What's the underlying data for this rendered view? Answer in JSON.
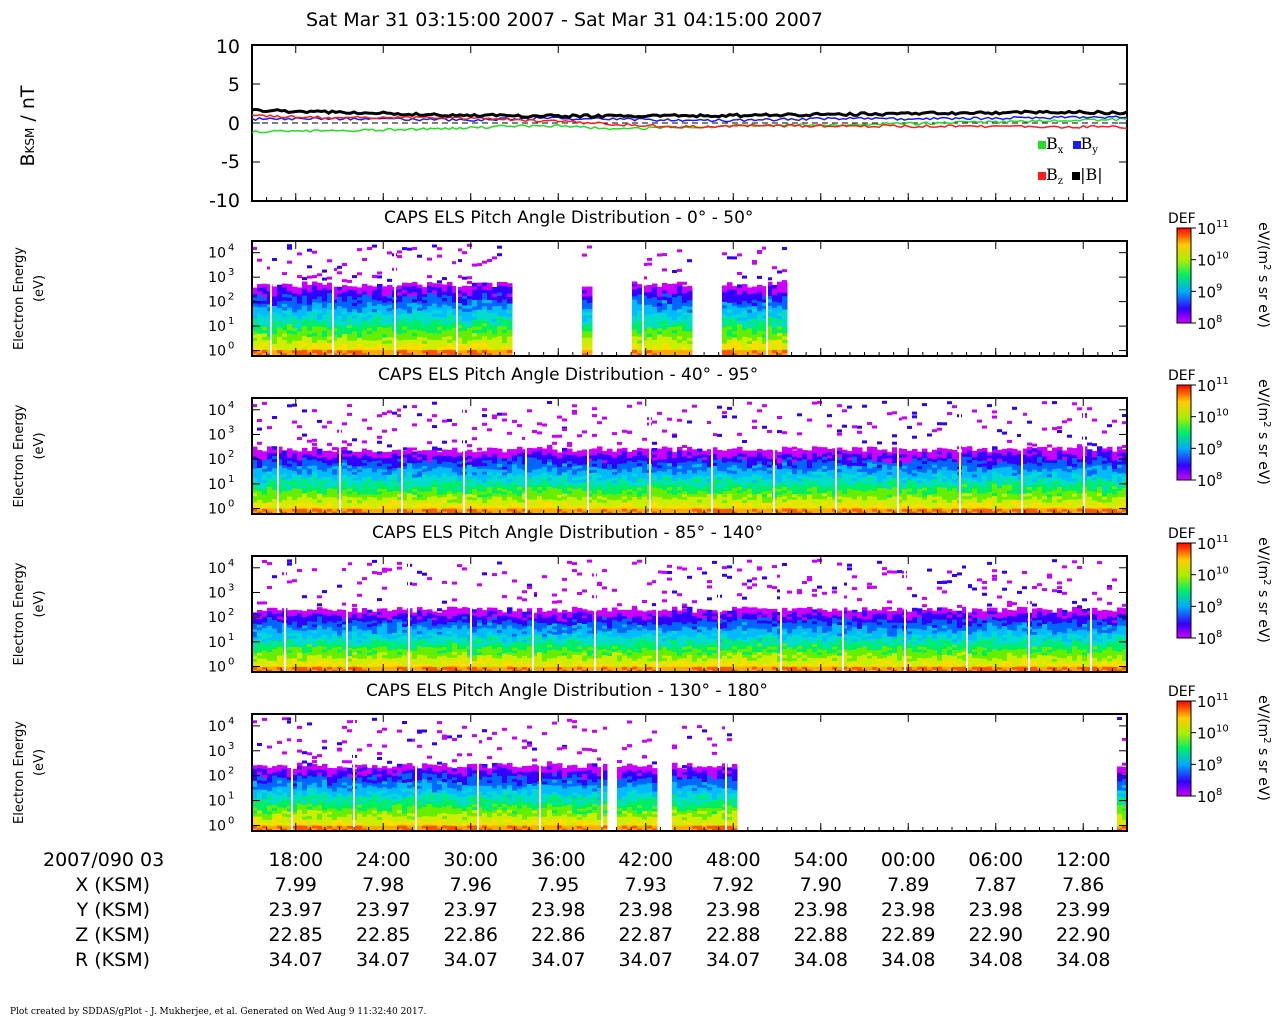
{
  "title": "Sat Mar 31 03:15:00 2007 - Sat Mar 31 04:15:00 2007",
  "mag_panel": {
    "ylabel_main": "B",
    "ylabel_sub": "KSM",
    "ylabel_unit": " / nT",
    "yticks": [
      "10",
      "5",
      "0",
      "-5",
      "-10"
    ],
    "legend": [
      {
        "label": "B",
        "sub": "x",
        "color": "#22dd22"
      },
      {
        "label": "B",
        "sub": "y",
        "color": "#1a1aff"
      },
      {
        "label": "B",
        "sub": "z",
        "color": "#ff1a1a"
      },
      {
        "label": "|B|",
        "sub": "",
        "color": "#000000"
      }
    ]
  },
  "spectro_panels": [
    {
      "title": "CAPS ELS Pitch Angle Distribution - 0° - 50°"
    },
    {
      "title": "CAPS ELS Pitch Angle Distribution - 40° - 95°"
    },
    {
      "title": "CAPS ELS Pitch Angle Distribution - 85° - 140°"
    },
    {
      "title": "CAPS ELS Pitch Angle Distribution - 130° - 180°"
    }
  ],
  "spectro_ylabel_line1": "Electron Energy",
  "spectro_ylabel_line2": "(eV)",
  "spectro_yticks": [
    "10",
    "10",
    "10",
    "10",
    "10"
  ],
  "spectro_ytick_exp": [
    "4",
    "3",
    "2",
    "1",
    "0"
  ],
  "colorbar": {
    "label": "DEF",
    "unit_line1": "eV/(m",
    "unit_sup": "2",
    "unit_line2": " s sr eV)",
    "ticks_base": [
      "10",
      "10",
      "10",
      "10"
    ],
    "ticks_exp": [
      "11",
      "10",
      "9",
      "8"
    ]
  },
  "chart_data": [
    {
      "type": "line",
      "title": "",
      "ylabel": "B_KSM / nT",
      "ylim": [
        -10,
        10
      ],
      "x_minutes_after_0315": [
        0,
        5,
        10,
        15,
        20,
        25,
        30,
        35,
        40,
        45,
        50,
        55,
        60
      ],
      "series": [
        {
          "name": "Bx",
          "values": [
            -1.1,
            -1.0,
            -0.8,
            -0.6,
            -0.3,
            -0.8,
            -0.5,
            -0.3,
            -0.2,
            -0.1,
            0.1,
            0.3,
            0.5
          ]
        },
        {
          "name": "By",
          "values": [
            0.5,
            0.6,
            0.5,
            0.4,
            0.6,
            0.5,
            0.3,
            0.4,
            0.6,
            0.5,
            0.6,
            0.7,
            0.7
          ]
        },
        {
          "name": "Bz",
          "values": [
            0.9,
            0.7,
            0.7,
            0.6,
            0.3,
            -0.2,
            -0.5,
            -0.3,
            -0.4,
            -0.4,
            -0.4,
            -0.5,
            -0.5
          ]
        },
        {
          "name": "|B|",
          "values": [
            1.6,
            1.4,
            1.2,
            1.0,
            0.9,
            0.9,
            0.9,
            1.0,
            1.1,
            1.2,
            1.3,
            1.4,
            1.3
          ]
        }
      ]
    },
    {
      "type": "heatmap",
      "panels": [
        "0° - 50°",
        "40° - 95°",
        "85° - 140°",
        "130° - 180°"
      ],
      "ylabel": "Electron Energy (eV)",
      "yscale": "log",
      "ylim": [
        0.6,
        30000
      ],
      "colorbar": {
        "label": "DEF",
        "unit": "eV/(m2 s sr eV)",
        "range": [
          100000000.0,
          100000000000.0
        ],
        "scale": "log"
      }
    }
  ],
  "time_axis": {
    "row_label": "2007/090 03",
    "ticks": [
      "18:00",
      "24:00",
      "30:00",
      "36:00",
      "42:00",
      "48:00",
      "54:00",
      "00:00",
      "06:00",
      "12:00"
    ]
  },
  "ephemeris": [
    {
      "label": "X (KSM)",
      "values": [
        "7.99",
        "7.98",
        "7.96",
        "7.95",
        "7.93",
        "7.92",
        "7.90",
        "7.89",
        "7.87",
        "7.86"
      ]
    },
    {
      "label": "Y (KSM)",
      "values": [
        "23.97",
        "23.97",
        "23.97",
        "23.98",
        "23.98",
        "23.98",
        "23.98",
        "23.98",
        "23.98",
        "23.99"
      ]
    },
    {
      "label": "Z (KSM)",
      "values": [
        "22.85",
        "22.85",
        "22.86",
        "22.86",
        "22.87",
        "22.88",
        "22.88",
        "22.89",
        "22.90",
        "22.90"
      ]
    },
    {
      "label": "R (KSM)",
      "values": [
        "34.07",
        "34.07",
        "34.07",
        "34.07",
        "34.07",
        "34.07",
        "34.08",
        "34.08",
        "34.08",
        "34.08"
      ]
    }
  ],
  "footer": "Plot created by SDDAS/gPlot - J. Mukherjee, et al.  Generated on Wed Aug 9 11:32:40 2017."
}
